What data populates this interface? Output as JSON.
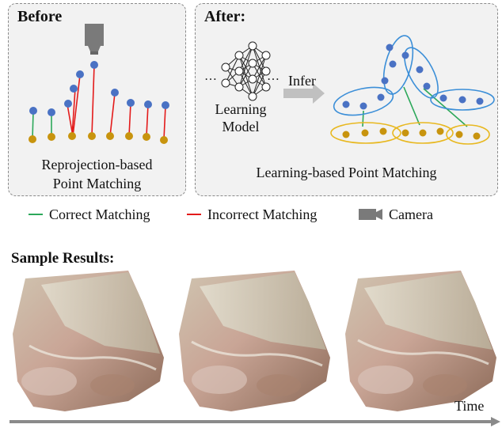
{
  "before": {
    "title": "Before",
    "caption_line1": "Reprojection-based",
    "caption_line2": "Point Matching"
  },
  "after": {
    "title": "After:",
    "model_label_line1": "Learning",
    "model_label_line2": "Model",
    "infer_label": "Infer",
    "ellipsis": "…",
    "caption": "Learning-based Point Matching"
  },
  "legend": {
    "correct": "Correct Matching",
    "incorrect": "Incorrect Matching",
    "camera": "Camera"
  },
  "colors": {
    "correct": "#2ca85a",
    "incorrect": "#e31b1b",
    "blue_point": "#4a72c4",
    "gold_point": "#c8940e",
    "camera": "#7a7a7a",
    "blue_ellipse": "#3c8fd8",
    "gold_ellipse": "#e8b820"
  },
  "samples": {
    "title": "Sample Results:",
    "time_label": "Time"
  }
}
